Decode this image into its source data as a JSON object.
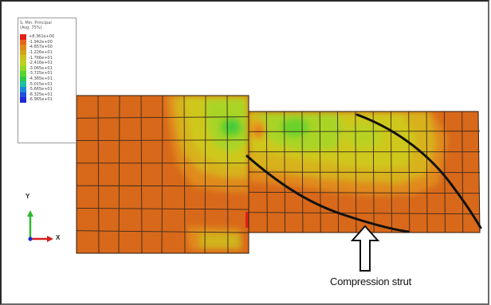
{
  "legend": {
    "title": "S, Min. Principal",
    "subtitle": "(Avg: 75%)",
    "entries": [
      {
        "value": "+8.361e+00",
        "color": "#e0221a"
      },
      {
        "value": "-1.942e+00",
        "color": "#e8641a"
      },
      {
        "value": "-4.857e+00",
        "color": "#e0881a"
      },
      {
        "value": "-1.226e+01",
        "color": "#cfa41c"
      },
      {
        "value": "-1.766e+01",
        "color": "#c9c21e"
      },
      {
        "value": "-2.416e+01",
        "color": "#b8d21f"
      },
      {
        "value": "-3.065e+01",
        "color": "#8fd826"
      },
      {
        "value": "-3.725e+01",
        "color": "#58d62f"
      },
      {
        "value": "-4.365e+01",
        "color": "#2ec945"
      },
      {
        "value": "-5.015e+01",
        "color": "#1cc1a0"
      },
      {
        "value": "-5.665e+01",
        "color": "#1a8ad6"
      },
      {
        "value": "-6.325e+01",
        "color": "#1f4fe0"
      },
      {
        "value": "-6.965e+01",
        "color": "#1f2ad6"
      }
    ]
  },
  "triad": {
    "y_label": "Y",
    "x_label": "X"
  },
  "annotation": {
    "caption": "Compression strut"
  },
  "colors": {
    "background_orange": "#d96a1a",
    "mid_orange": "#e0821c",
    "yellow": "#d8c21f",
    "green": "#52cc2c",
    "mesh": "#3a2a1a",
    "strut_line": "#111111"
  }
}
